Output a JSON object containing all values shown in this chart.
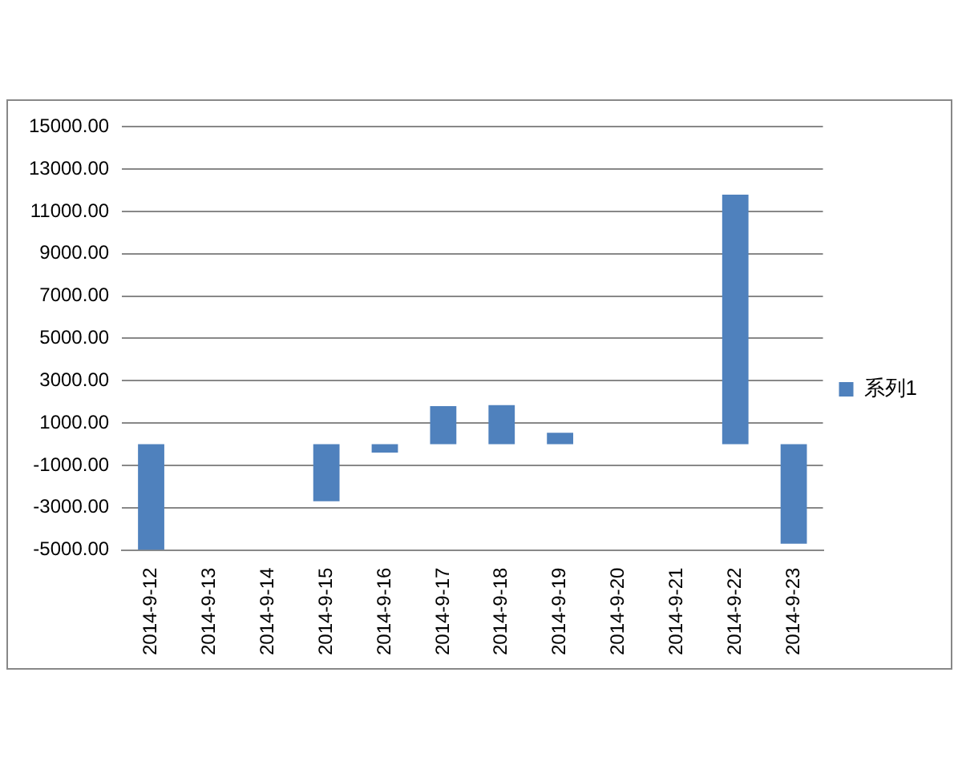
{
  "chart_data": {
    "type": "bar",
    "categories": [
      "2014-9-12",
      "2014-9-13",
      "2014-9-14",
      "2014-9-15",
      "2014-9-16",
      "2014-9-17",
      "2014-9-18",
      "2014-9-19",
      "2014-9-20",
      "2014-9-21",
      "2014-9-22",
      "2014-9-23"
    ],
    "series": [
      {
        "name": "系列1",
        "color": "#4f81bd",
        "values": [
          -5000,
          0,
          0,
          -2700,
          -400,
          1800,
          1850,
          540,
          0,
          0,
          11800,
          -4700
        ]
      }
    ],
    "ylim": [
      -5000,
      15000
    ],
    "yticks": [
      {
        "value": -5000,
        "label": "-5000.00"
      },
      {
        "value": -3000,
        "label": "-3000.00"
      },
      {
        "value": -1000,
        "label": "-1000.00"
      },
      {
        "value": 1000,
        "label": "1000.00"
      },
      {
        "value": 3000,
        "label": "3000.00"
      },
      {
        "value": 5000,
        "label": "5000.00"
      },
      {
        "value": 7000,
        "label": "7000.00"
      },
      {
        "value": 9000,
        "label": "9000.00"
      },
      {
        "value": 11000,
        "label": "11000.00"
      },
      {
        "value": 13000,
        "label": "13000.00"
      },
      {
        "value": 15000,
        "label": "15000.00"
      }
    ],
    "grid": "y",
    "legend": "right"
  }
}
